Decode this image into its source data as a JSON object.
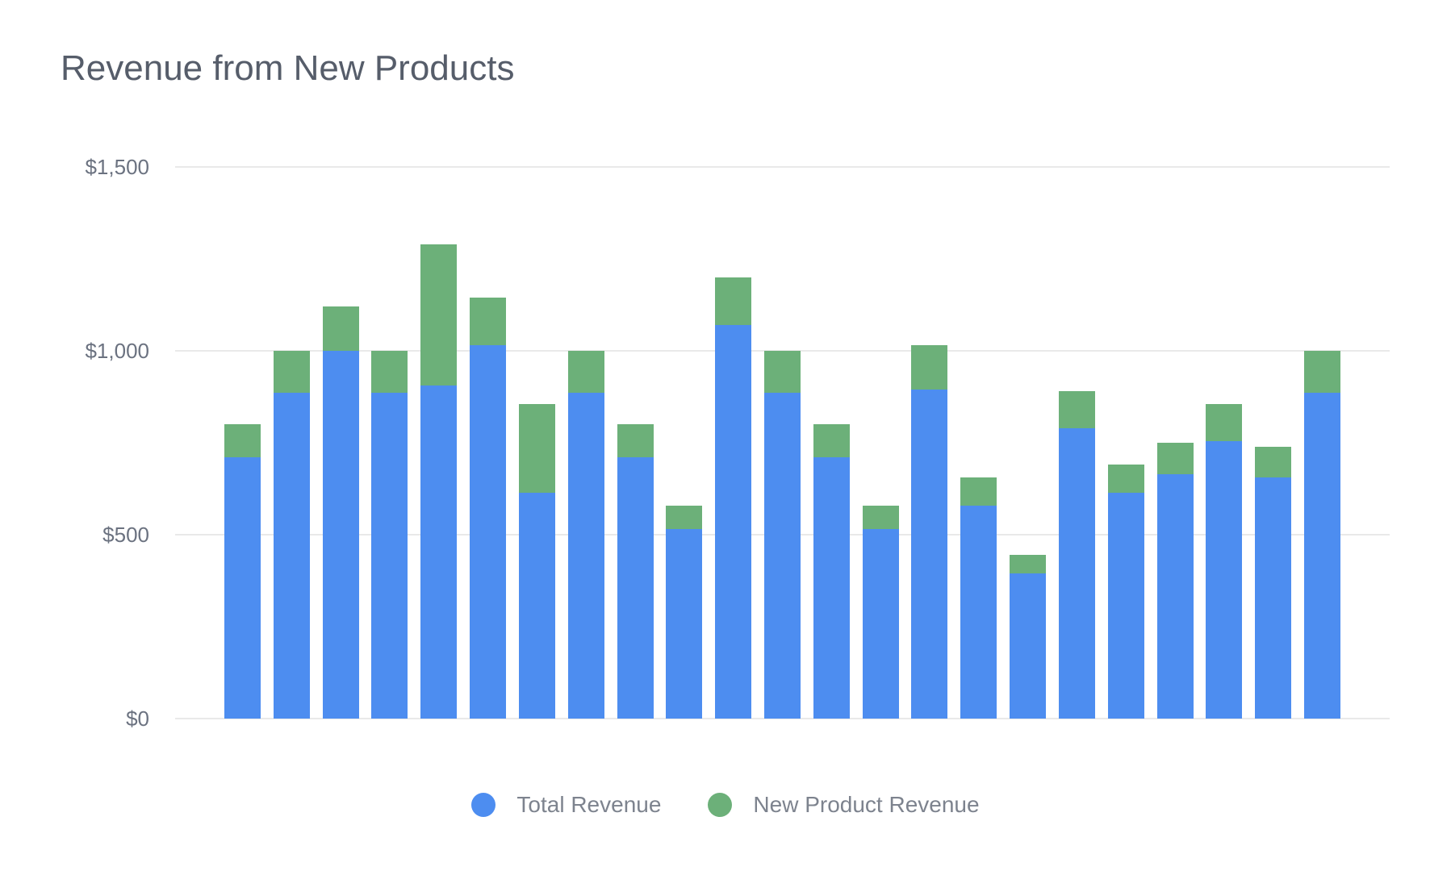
{
  "title": "Revenue from New Products",
  "chart_data": {
    "type": "bar",
    "stacked": true,
    "title": "Revenue from New Products",
    "bar_count": 23,
    "x_axis_labels_visible": false,
    "series": [
      {
        "name": "Total Revenue",
        "color": "#4D8DF0",
        "values": [
          710,
          885,
          1000,
          885,
          905,
          1015,
          615,
          885,
          710,
          515,
          1070,
          885,
          710,
          515,
          895,
          580,
          395,
          790,
          615,
          665,
          755,
          655,
          885
        ]
      },
      {
        "name": "New Product Revenue",
        "color": "#6CB079",
        "values": [
          90,
          115,
          120,
          115,
          385,
          130,
          240,
          115,
          90,
          65,
          130,
          115,
          90,
          65,
          120,
          75,
          50,
          100,
          75,
          85,
          100,
          85,
          115
        ]
      }
    ],
    "stack_totals": [
      800,
      1000,
      1120,
      1000,
      1290,
      1145,
      855,
      1000,
      800,
      580,
      1200,
      1000,
      800,
      580,
      1015,
      655,
      445,
      890,
      690,
      750,
      855,
      740,
      1000
    ],
    "ylabel": "",
    "ylim": [
      0,
      1500
    ],
    "yticks": [
      {
        "value": 0,
        "label": "$0"
      },
      {
        "value": 500,
        "label": "$500"
      },
      {
        "value": 1000,
        "label": "$1,000"
      },
      {
        "value": 1500,
        "label": "$1,500"
      }
    ],
    "grid": true,
    "legend_position": "bottom"
  },
  "legend": {
    "items": [
      {
        "label": "Total Revenue",
        "color": "#4D8DF0"
      },
      {
        "label": "New Product Revenue",
        "color": "#6CB079"
      }
    ]
  },
  "colors": {
    "background": "#ffffff",
    "grid": "#e9e9e9",
    "tick_label": "#6b7280",
    "title": "#565d6a",
    "legend_text": "#7d838e",
    "bar_blue": "#4D8DF0",
    "bar_green": "#6CB079"
  }
}
